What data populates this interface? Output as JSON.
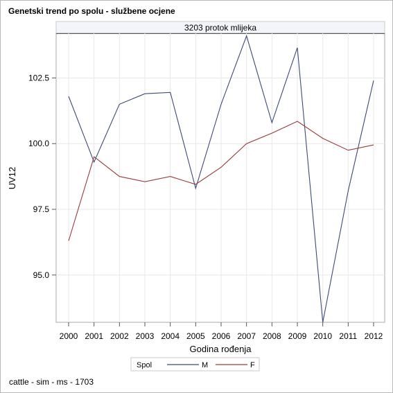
{
  "title": "Genetski trend po spolu - službene ocjene",
  "footnote": "cattle - sim - ms - 1703",
  "chart_data": {
    "type": "line",
    "panel_title": "3203 protok mlijeka",
    "xlabel": "Godina rođenja",
    "ylabel": "UV12",
    "x": [
      2000,
      2001,
      2002,
      2003,
      2004,
      2005,
      2006,
      2007,
      2008,
      2009,
      2010,
      2011,
      2012
    ],
    "x_ticks": [
      "2000",
      "2001",
      "2002",
      "2003",
      "2004",
      "2005",
      "2006",
      "2007",
      "2008",
      "2009",
      "2010",
      "2011",
      "2012"
    ],
    "y_ticks": [
      95.0,
      97.5,
      100.0,
      102.5
    ],
    "y_tick_labels": [
      "95.0",
      "97.5",
      "100.0",
      "102.5"
    ],
    "ylim": [
      93.2,
      104.2
    ],
    "grid": true,
    "legend": {
      "title": "Spol",
      "placement": "bottom"
    },
    "series": [
      {
        "name": "M",
        "color": "#3b4a7a",
        "values": [
          101.8,
          99.3,
          101.5,
          101.9,
          101.95,
          98.3,
          101.5,
          104.1,
          100.8,
          103.65,
          93.2,
          98.2,
          102.4
        ]
      },
      {
        "name": "F",
        "color": "#9c3a36",
        "values": [
          96.3,
          99.5,
          98.75,
          98.55,
          98.75,
          98.45,
          99.1,
          100.0,
          100.4,
          100.85,
          100.2,
          99.75,
          99.95
        ]
      }
    ]
  }
}
